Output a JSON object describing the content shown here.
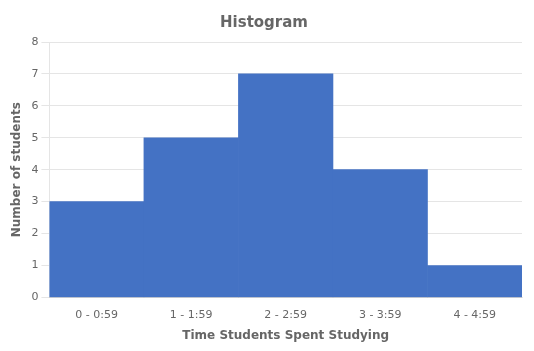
{
  "chart_data": {
    "type": "bar",
    "title": "Histogram",
    "xlabel": "Time Students Spent Studying",
    "ylabel": "Number of students",
    "categories": [
      "0 - 0:59",
      "1 - 1:59",
      "2 - 2:59",
      "3 - 3:59",
      "4 - 4:59"
    ],
    "values": [
      3,
      5,
      7,
      4,
      1
    ],
    "color": "#4472C4",
    "ylim": [
      0,
      8
    ],
    "yticks": [
      0,
      1,
      2,
      3,
      4,
      5,
      6,
      7,
      8
    ],
    "grid": true
  }
}
